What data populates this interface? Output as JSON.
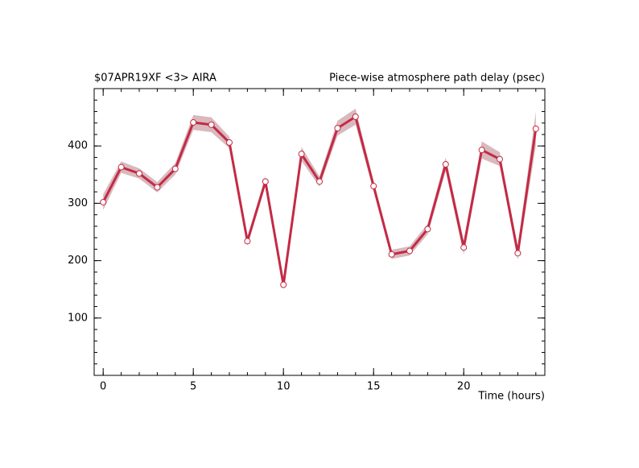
{
  "chart_data": {
    "type": "line",
    "title": "$07APR19XF <3>  AIRA",
    "subtitle": "Piece-wise atmosphere path delay (psec)",
    "x_label": "Time (hours)",
    "x": [
      0,
      1,
      2,
      3,
      4,
      5,
      6,
      7,
      8,
      9,
      10,
      11,
      12,
      13,
      14,
      15,
      16,
      17,
      18,
      19,
      20,
      21,
      22,
      23,
      24
    ],
    "series": [
      {
        "color": "#c42a45",
        "band_color": "#d9b9be",
        "values": [
          302,
          363,
          352,
          328,
          360,
          441,
          437,
          406,
          234,
          338,
          158,
          386,
          338,
          431,
          451,
          330,
          211,
          217,
          255,
          368,
          223,
          393,
          377,
          213,
          430
        ],
        "errors": [
          14,
          10,
          9,
          9,
          10,
          13,
          13,
          10,
          8,
          8,
          8,
          12,
          9,
          13,
          14,
          9,
          8,
          8,
          9,
          12,
          12,
          15,
          12,
          12,
          30
        ]
      }
    ],
    "xlim": [
      -0.5,
      24.5
    ],
    "ylim": [
      0,
      500
    ],
    "xticks": [
      0,
      5,
      10,
      15,
      20
    ],
    "yticks": [
      100,
      200,
      300,
      400
    ]
  }
}
